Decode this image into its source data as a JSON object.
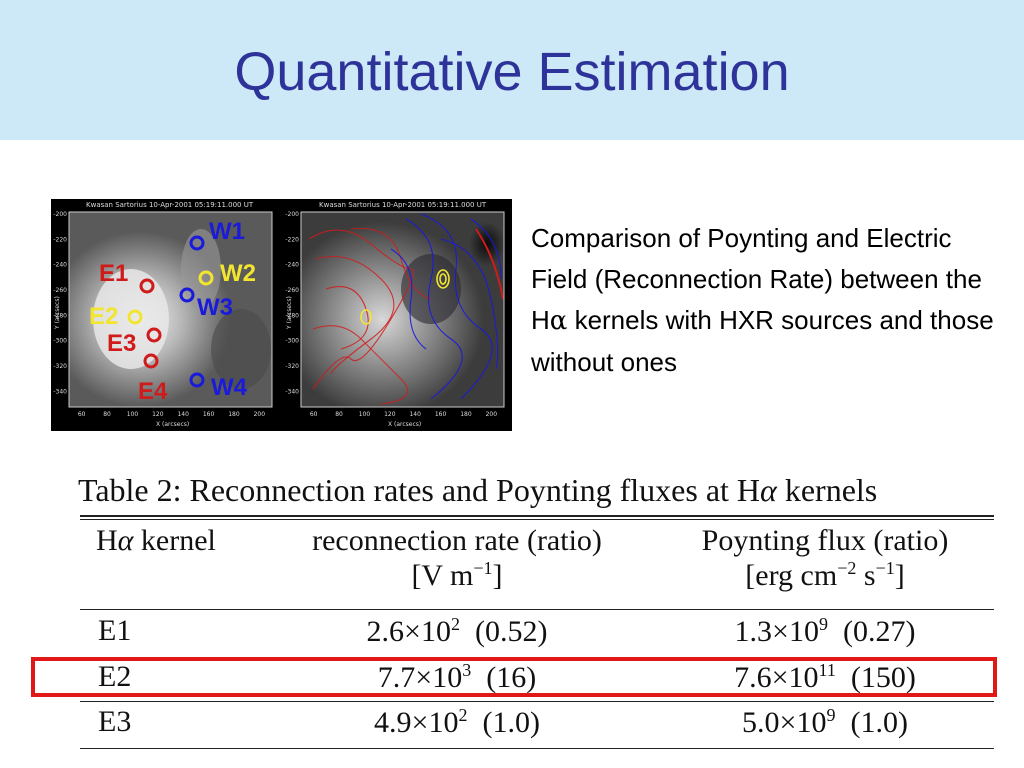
{
  "slide": {
    "title": "Quantitative Estimation",
    "caption": {
      "before": "Comparison of Poynting and Electric Field (Reconnection Rate) between the H",
      "alpha": "α",
      "after": " kernels with HXR sources and those without ones"
    }
  },
  "figure": {
    "left_panel": {
      "header": "Kwasan Sartorius   10-Apr-2001 05:19:11.000 UT",
      "xlabel": "X (arcsecs)",
      "ylabel": "Y (arcsecs)",
      "x_ticks": [
        "60",
        "80",
        "100",
        "120",
        "140",
        "160",
        "180",
        "200"
      ],
      "y_ticks": [
        "-200",
        "-220",
        "-240",
        "-260",
        "-280",
        "-300",
        "-320",
        "-340"
      ],
      "labels": {
        "w1": "W1",
        "w2": "W2",
        "w3": "W3",
        "w4": "W4",
        "e1": "E1",
        "e2": "E2",
        "e3": "E3",
        "e4": "E4"
      }
    },
    "right_panel": {
      "header": "Kwasan Sartorius   10-Apr-2001 05:19:11.000 UT",
      "xlabel": "X (arcsecs)",
      "ylabel": "Y (arcsecs)",
      "x_ticks": [
        "60",
        "80",
        "100",
        "120",
        "140",
        "160",
        "180",
        "200"
      ],
      "y_ticks": [
        "-200",
        "-220",
        "-240",
        "-260",
        "-280",
        "-300",
        "-320",
        "-340"
      ]
    },
    "colors": {
      "west": "#1a1adb",
      "east": "#d01b1b",
      "hxr": "#f2e530"
    }
  },
  "table": {
    "title_before": "Table 2:  Reconnection rates and Poynting fluxes at H",
    "title_alpha": "α",
    "title_after": " kernels",
    "headers": {
      "col1_before": "H",
      "col1_alpha": "α",
      "col1_after": " kernel",
      "col2_line1": "reconnection rate (ratio)",
      "col2_unit": "[V m",
      "col2_exp": "−1",
      "col2_unit_end": "]",
      "col3_line1": "Poynting flux (ratio)",
      "col3_unit_a": "[erg cm",
      "col3_exp_a": "−2",
      "col3_unit_b": " s",
      "col3_exp_b": "−1",
      "col3_unit_end": "]"
    },
    "rows": [
      {
        "kernel": "E1",
        "rate_mant": "2.6×10",
        "rate_exp": "2",
        "rate_ratio": "  (0.52)",
        "flux_mant": "1.3×10",
        "flux_exp": "9",
        "flux_ratio": "  (0.27)"
      },
      {
        "kernel": "E2",
        "rate_mant": "7.7×10",
        "rate_exp": "3",
        "rate_ratio": "  (16)",
        "flux_mant": "7.6×10",
        "flux_exp": "11",
        "flux_ratio": "  (150)"
      },
      {
        "kernel": "E3",
        "rate_mant": "4.9×10",
        "rate_exp": "2",
        "rate_ratio": "  (1.0)",
        "flux_mant": "5.0×10",
        "flux_exp": "9",
        "flux_ratio": "  (1.0)"
      }
    ]
  }
}
